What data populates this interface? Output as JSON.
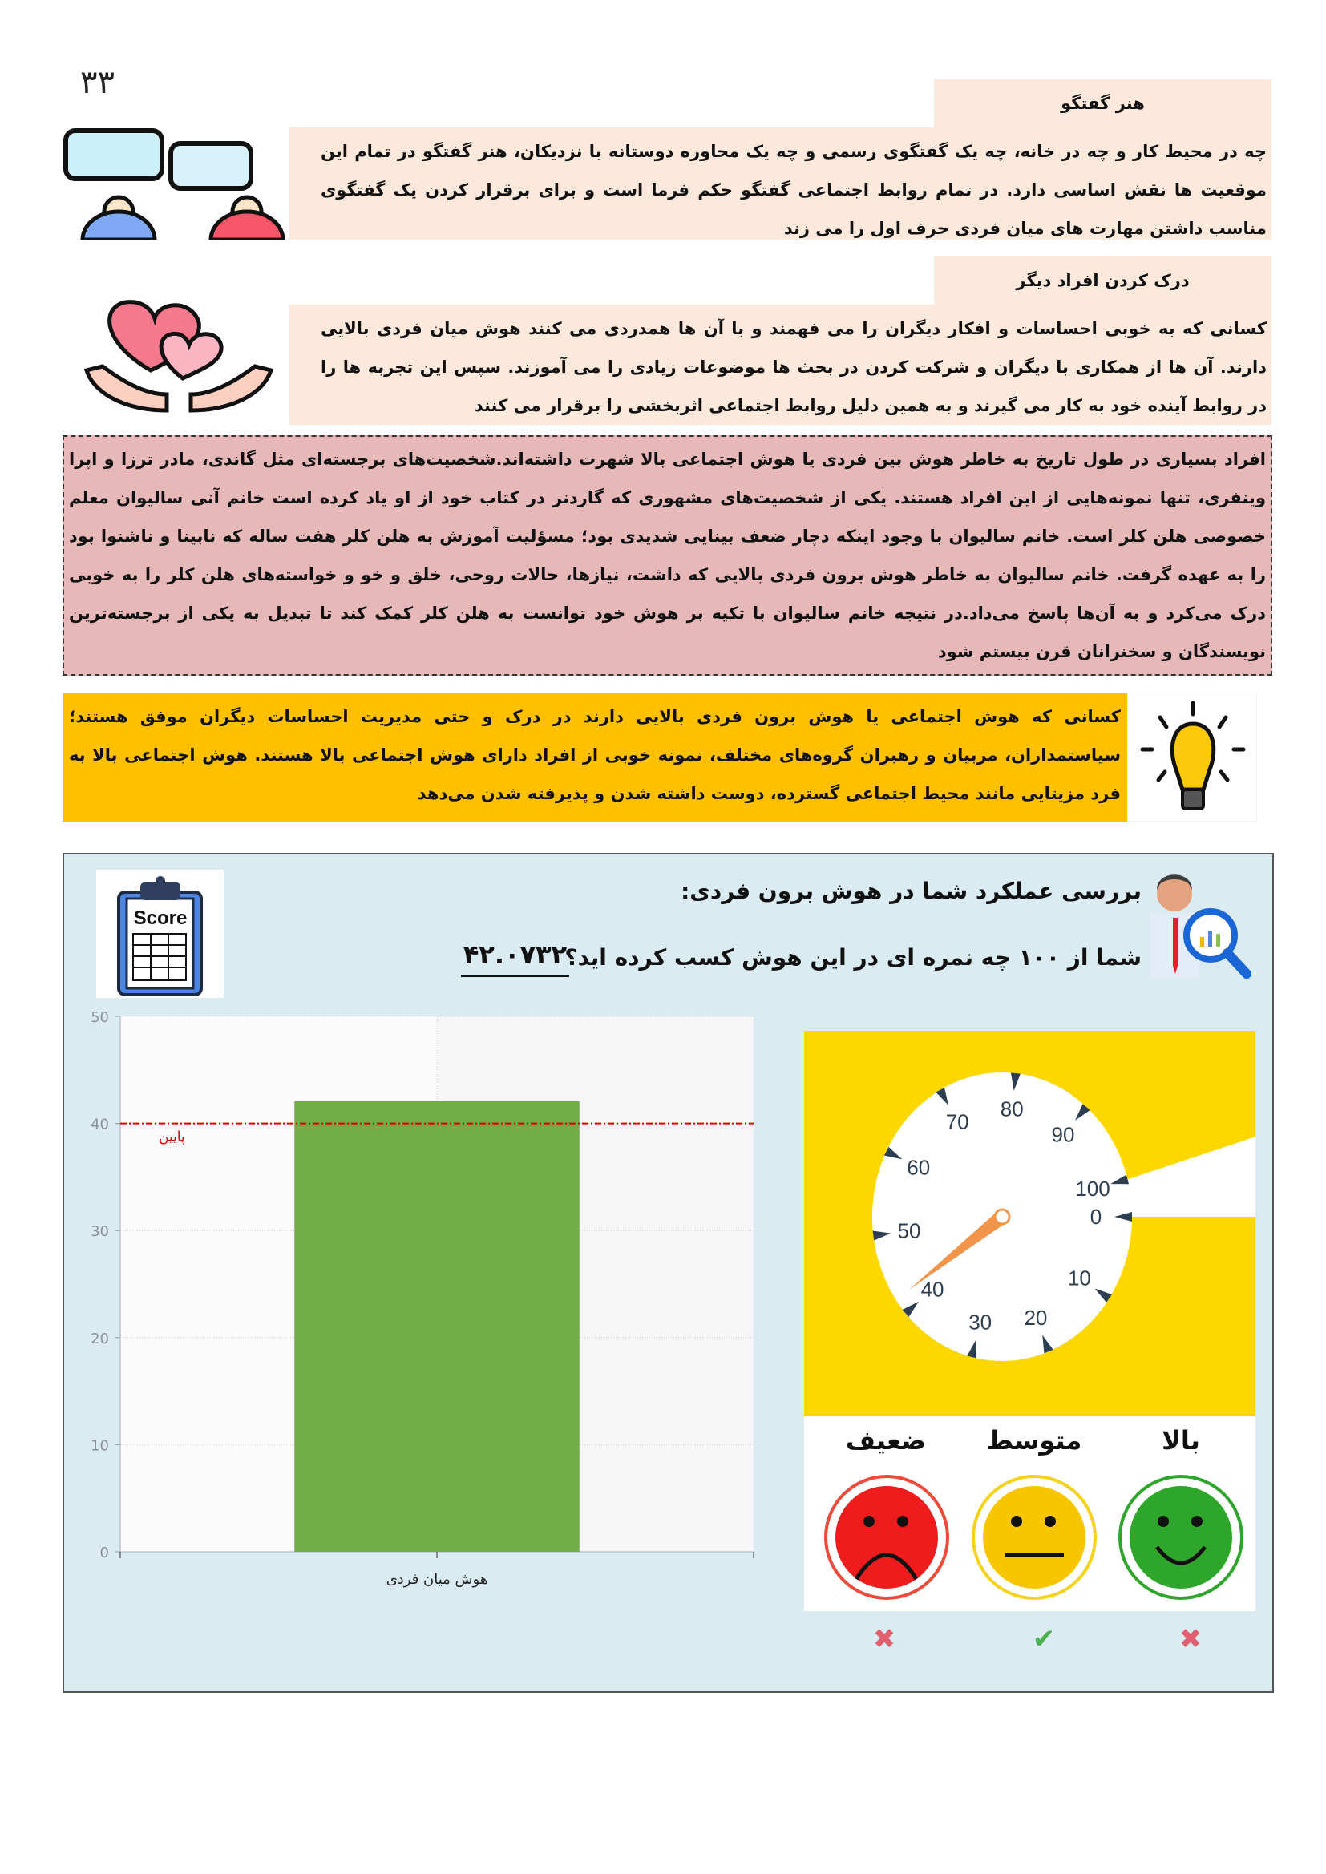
{
  "page_number": "٣٣",
  "sections": [
    {
      "title": "هنر گفتگو",
      "body": "چه در محیط کار و چه در خانه، چه یک گفتگوی رسمی و چه یک محاوره دوستانه با نزدیکان، هنر گفتگو در تمام این موقعیت ها نقش اساسی دارد. در تمام روابط اجتماعی گفتگو حکم فرما است و برای برقرار کردن یک گفتگوی مناسب داشتن مهارت های میان فردی حرف اول را می زند",
      "icon": "conversation-icon"
    },
    {
      "title": "درک کردن افراد دیگر",
      "body": "کسانی که به خوبی احساسات و افکار دیگران را می فهمند و با آن ها همدردی می کنند هوش میان فردی بالایی دارند. آن ها از همکاری با دیگران و شرکت کردن در بحث ها موضوعات زیادی را می آموزند. سپس این تجربه ها را در روابط آینده خود به کار می گیرند و به همین دلیل روابط اجتماعی اثربخشی را برقرار می کنند",
      "icon": "hearts-hands-icon"
    }
  ],
  "example_box": "افراد بسیاری در طول تاریخ به خاطر هوش بین فردی یا هوش اجتماعی بالا شهرت داشته‌اند.شخصیت‌های برجسته‌ای مثل گاندی، مادر ترزا و اپرا وینفری، تنها نمونه‌هایی از این افراد هستند. یکی از شخصیت‌های مشهوری که گاردنر در کتاب خود از او یاد کرده است خانم آنی سالیوان معلم خصوصی هلن کلر است. خانم سالیوان با وجود اینکه دچار ضعف بینایی شدیدی بود؛ مسؤلیت آموزش به هلن کلر هفت ساله که نابینا و ناشنوا بود را به عهده گرفت. خانم سالیوان به خاطر هوش برون فردی بالایی که داشت، نیازها، حالات روحی، خلق و خو و خواسته‌های هلن کلر را به خوبی درک می‌کرد و به آن‌ها پاسخ می‌داد.در نتیجه خانم سالیوان با تکیه بر هوش خود توانست به هلن کلر کمک کند تا تبدیل به یکی از برجسته‌ترین نویسندگان و سخنرانان قرن بیستم شود",
  "tip_box": "کسانی که هوش اجتماعی یا هوش برون فردی بالایی دارند در درک و حتی مدیریت احساسات دیگران موفق هستند؛ سیاستمداران، مربیان و رهبران گروه‌های مختلف، نمونه خوبی از افراد دارای هوش اجتماعی بالا هستند. هوش اجتماعی بالا به فرد مزیتایی مانند محیط اجتماعی گسترده، دوست داشته شدن و پذیرفته شدن می‌دهد",
  "panel": {
    "title": "بررسی عملکرد شما در هوش برون فردی:",
    "question": "شما از ۱۰۰ چه نمره ای در این هوش کسب کرده اید؟",
    "score": "۴۲.۰۷۳۲",
    "score_icon_text": "Score",
    "levels": [
      {
        "label": "بالا",
        "face": "happy",
        "color": "#2ea62b",
        "result": "cross"
      },
      {
        "label": "متوسط",
        "face": "neutral",
        "color": "#f7c600",
        "result": "check"
      },
      {
        "label": "ضعیف",
        "face": "sad",
        "color": "#ee1c1c",
        "result": "cross"
      }
    ]
  },
  "chart_data": [
    {
      "type": "bar",
      "categories": [
        "هوش میان فردی"
      ],
      "values": [
        42.07
      ],
      "ylim": [
        0,
        50
      ],
      "yticks": [
        0,
        10,
        20,
        30,
        40,
        50
      ],
      "bar_color": "#70ad47",
      "grid": true,
      "reference_line": {
        "value": 40,
        "label": "پایین",
        "color": "#dd0000"
      }
    },
    {
      "type": "gauge",
      "value": 42.07,
      "min": 0,
      "max": 100,
      "ticks": [
        0,
        10,
        20,
        30,
        40,
        50,
        60,
        70,
        80,
        90,
        100
      ],
      "needle_color": "#f0954a",
      "background": "#fcd700"
    }
  ]
}
